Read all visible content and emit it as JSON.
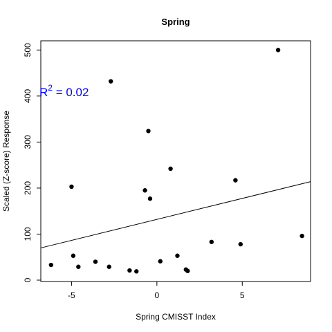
{
  "chart_data": {
    "type": "scatter",
    "title": "Spring",
    "xlabel": "Spring CMISST Index",
    "ylabel": "Scaled (Z-score) Response",
    "xlim": [
      -6.8,
      9.0
    ],
    "ylim": [
      -3,
      520
    ],
    "xticks": [
      -5,
      0,
      5
    ],
    "yticks": [
      0,
      100,
      200,
      300,
      400,
      500
    ],
    "grid": false,
    "points": [
      {
        "x": -6.2,
        "y": 33
      },
      {
        "x": -5.0,
        "y": 203
      },
      {
        "x": -4.9,
        "y": 53
      },
      {
        "x": -4.6,
        "y": 29
      },
      {
        "x": -3.6,
        "y": 40
      },
      {
        "x": -2.8,
        "y": 29
      },
      {
        "x": -2.7,
        "y": 432
      },
      {
        "x": -1.6,
        "y": 21
      },
      {
        "x": -1.2,
        "y": 19
      },
      {
        "x": -0.7,
        "y": 195
      },
      {
        "x": -0.5,
        "y": 324
      },
      {
        "x": -0.4,
        "y": 177
      },
      {
        "x": 0.2,
        "y": 41
      },
      {
        "x": 0.8,
        "y": 242
      },
      {
        "x": 1.2,
        "y": 53
      },
      {
        "x": 1.7,
        "y": 23
      },
      {
        "x": 1.8,
        "y": 20
      },
      {
        "x": 3.2,
        "y": 83
      },
      {
        "x": 4.6,
        "y": 217
      },
      {
        "x": 4.9,
        "y": 78
      },
      {
        "x": 7.1,
        "y": 500
      },
      {
        "x": 8.5,
        "y": 96
      }
    ],
    "fit_line": {
      "x": [
        -6.8,
        9.0
      ],
      "y": [
        70,
        214
      ]
    },
    "annotation": {
      "base": "R",
      "sup": "2",
      "rest": " = 0.02",
      "color": "#0000ff"
    }
  }
}
